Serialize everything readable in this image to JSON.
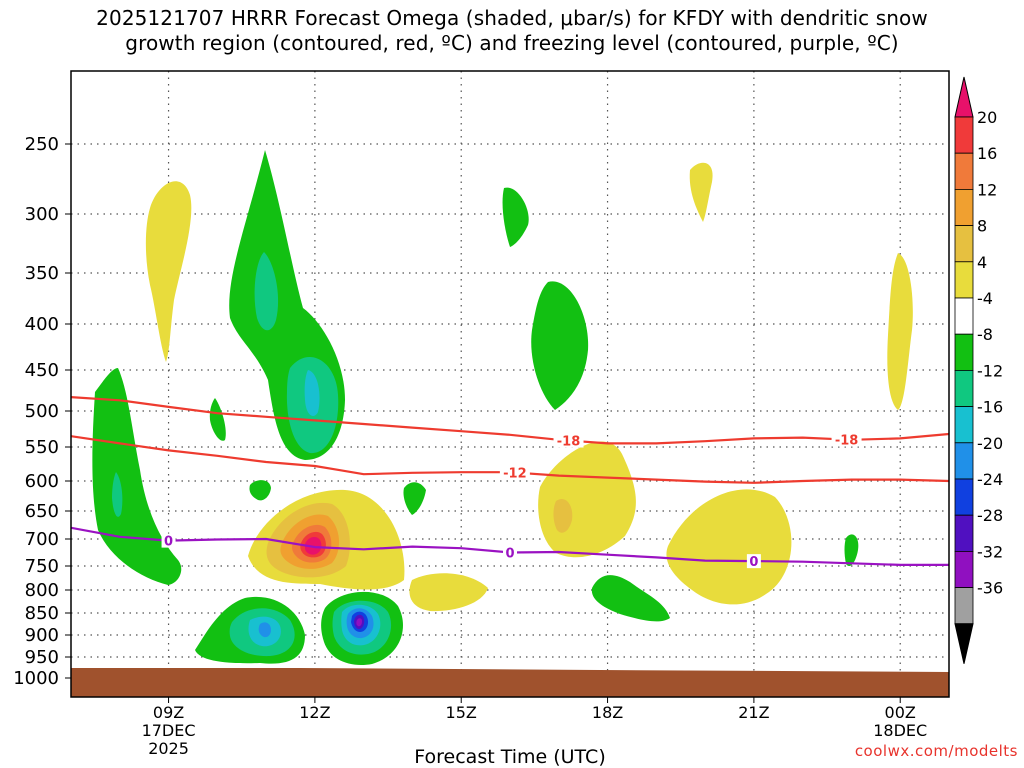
{
  "title": {
    "line1": "2025121707 HRRR Forecast Omega (shaded, μbar/s) for KFDY with dendritic snow",
    "line2": "growth region (contoured, red, ºC) and freezing level (contoured, purple, ºC)"
  },
  "credit": "coolwx.com/modelts",
  "chart_data": {
    "type": "time-height cross section",
    "station": "KFDY",
    "model": "HRRR",
    "init": "2025121707",
    "xlabel": "Forecast Time (UTC)",
    "x_ticks": [
      {
        "hour": 9,
        "label": "09Z",
        "sub1": "17DEC",
        "sub2": "2025"
      },
      {
        "hour": 12,
        "label": "12Z"
      },
      {
        "hour": 15,
        "label": "15Z"
      },
      {
        "hour": 18,
        "label": "18Z"
      },
      {
        "hour": 21,
        "label": "21Z"
      },
      {
        "hour": 24,
        "label": "00Z",
        "sub1": "18DEC"
      }
    ],
    "x_range_hours": [
      7,
      25
    ],
    "y_unit": "hPa",
    "y_ticks": [
      250,
      300,
      350,
      400,
      450,
      500,
      550,
      600,
      650,
      700,
      750,
      800,
      850,
      900,
      950,
      1000
    ],
    "shading_variable": "Omega (μbar/s)",
    "colorbar": {
      "labels": [
        "20",
        "16",
        "12",
        "8",
        "4",
        "-4",
        "-8",
        "-12",
        "-16",
        "-20",
        "-24",
        "-28",
        "-32",
        "-36"
      ],
      "colors_top_to_bottom": [
        "#e8116a",
        "#f03a3a",
        "#f07a3a",
        "#f0a030",
        "#e6c040",
        "#e8dc3c",
        "#ffffff",
        "#12c012",
        "#10c880",
        "#18c0d0",
        "#2090e8",
        "#1040e0",
        "#5010c0",
        "#9010c0",
        "#a0a0a0",
        "#000000"
      ]
    },
    "contours": [
      {
        "name": "dgz -18C",
        "label": "-18",
        "color": "#ee3b2f",
        "points": [
          [
            7,
            483
          ],
          [
            8,
            487
          ],
          [
            9,
            495
          ],
          [
            10,
            503
          ],
          [
            11,
            508
          ],
          [
            12,
            513
          ],
          [
            13,
            518
          ],
          [
            14,
            523
          ],
          [
            15,
            528
          ],
          [
            16,
            533
          ],
          [
            17,
            540
          ],
          [
            18,
            545
          ],
          [
            19,
            545
          ],
          [
            20,
            542
          ],
          [
            21,
            538
          ],
          [
            22,
            537
          ],
          [
            23,
            540
          ],
          [
            24,
            538
          ],
          [
            25,
            532
          ]
        ]
      },
      {
        "name": "dgz -12C",
        "label": "-12",
        "color": "#ee3b2f",
        "points": [
          [
            7,
            535
          ],
          [
            8,
            545
          ],
          [
            9,
            555
          ],
          [
            10,
            563
          ],
          [
            11,
            572
          ],
          [
            12,
            578
          ],
          [
            12.5,
            584
          ],
          [
            13,
            590
          ],
          [
            14,
            588
          ],
          [
            15,
            587
          ],
          [
            16,
            587
          ],
          [
            17,
            592
          ],
          [
            18,
            595
          ],
          [
            19,
            598
          ],
          [
            20,
            601
          ],
          [
            21,
            603
          ],
          [
            22,
            600
          ],
          [
            23,
            598
          ],
          [
            24,
            598
          ],
          [
            25,
            600
          ]
        ]
      },
      {
        "name": "freezing level",
        "label": "0",
        "color": "#9a12c2",
        "points": [
          [
            7,
            680
          ],
          [
            8,
            696
          ],
          [
            9,
            703
          ],
          [
            10,
            701
          ],
          [
            11,
            700
          ],
          [
            12,
            715
          ],
          [
            13,
            719
          ],
          [
            14,
            714
          ],
          [
            15,
            717
          ],
          [
            16,
            725
          ],
          [
            17,
            724
          ],
          [
            18,
            729
          ],
          [
            19,
            734
          ],
          [
            20,
            740
          ],
          [
            21,
            741
          ],
          [
            22,
            742
          ],
          [
            23,
            745
          ],
          [
            24,
            748
          ],
          [
            25,
            748
          ]
        ]
      }
    ],
    "omega_regions": [
      {
        "sign": "positive",
        "max": "~20+",
        "center_hour": 12.1,
        "center_hPa": 720
      },
      {
        "sign": "negative",
        "min": "~-32",
        "center_hour": 13.0,
        "center_hPa": 880
      },
      {
        "sign": "negative",
        "min": "~-16",
        "center_hour": 11.0,
        "center_hPa": 880
      },
      {
        "sign": "negative",
        "min": "~-12",
        "center_hour": 11.0,
        "center_hPa": 370
      },
      {
        "sign": "negative",
        "min": "~-12",
        "center_hour": 11.8,
        "center_hPa": 480
      }
    ]
  }
}
